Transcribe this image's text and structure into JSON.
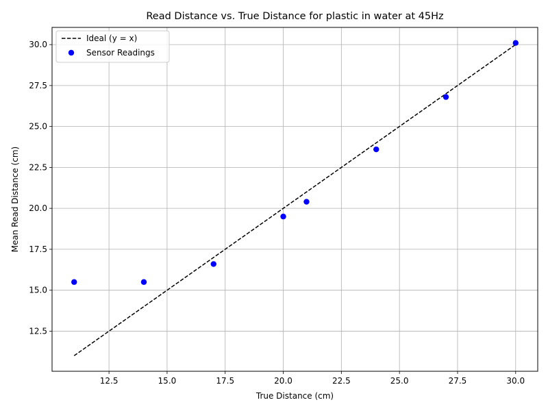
{
  "chart_data": {
    "type": "scatter",
    "title": "Read Distance vs. True Distance for plastic in water at 45Hz",
    "xlabel": "True Distance (cm)",
    "ylabel": "Mean Read Distance (cm)",
    "xlim": [
      10.05,
      30.95
    ],
    "ylim": [
      10.05,
      31.05
    ],
    "xticks": [
      12.5,
      15.0,
      17.5,
      20.0,
      22.5,
      25.0,
      27.5,
      30.0
    ],
    "xtick_labels": [
      "12.5",
      "15.0",
      "17.5",
      "20.0",
      "22.5",
      "25.0",
      "27.5",
      "30.0"
    ],
    "yticks": [
      12.5,
      15.0,
      17.5,
      20.0,
      22.5,
      25.0,
      27.5,
      30.0
    ],
    "ytick_labels": [
      "12.5",
      "15.0",
      "17.5",
      "20.0",
      "22.5",
      "25.0",
      "27.5",
      "30.0"
    ],
    "grid": true,
    "legend_position": "upper-left",
    "series": [
      {
        "name": "Ideal (y = x)",
        "kind": "line",
        "style": "dashed",
        "color": "#000000",
        "x": [
          11,
          30
        ],
        "y": [
          11,
          30
        ]
      },
      {
        "name": "Sensor Readings",
        "kind": "scatter",
        "color": "#0000ff",
        "x": [
          11,
          14,
          17,
          20,
          21,
          24,
          27,
          30
        ],
        "y": [
          15.5,
          15.5,
          16.6,
          19.5,
          20.4,
          23.6,
          26.8,
          30.1
        ]
      }
    ]
  }
}
